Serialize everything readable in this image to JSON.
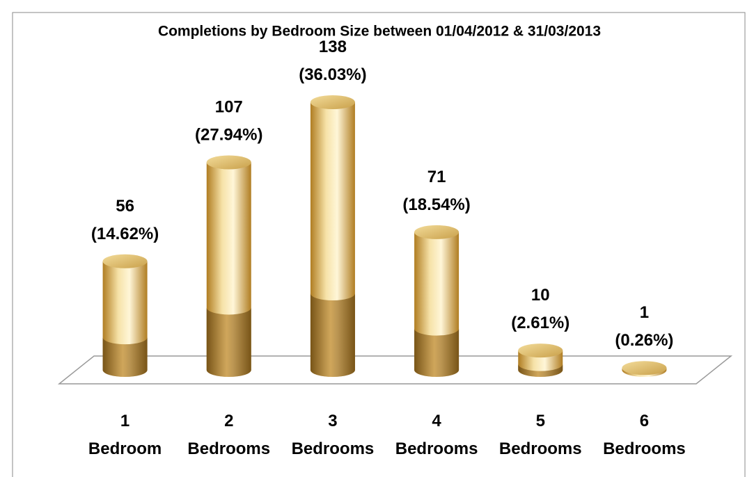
{
  "chart_data": {
    "type": "bar3d",
    "title": "Completions by Bedroom Size between 01/04/2012 &  31/03/2013",
    "categories": [
      "1 Bedroom",
      "2 Bedrooms",
      "3 Bedrooms",
      "4 Bedrooms",
      "5 Bedrooms",
      "6 Bedrooms"
    ],
    "values": [
      56,
      107,
      138,
      71,
      10,
      1
    ],
    "value_labels": [
      "56 (14.62%)",
      "107 (27.94%)",
      "138 (36.03%)",
      "71 (18.54%)",
      "10 (2.61%)",
      "1 (0.26%)"
    ],
    "color": "#c89a3a"
  }
}
